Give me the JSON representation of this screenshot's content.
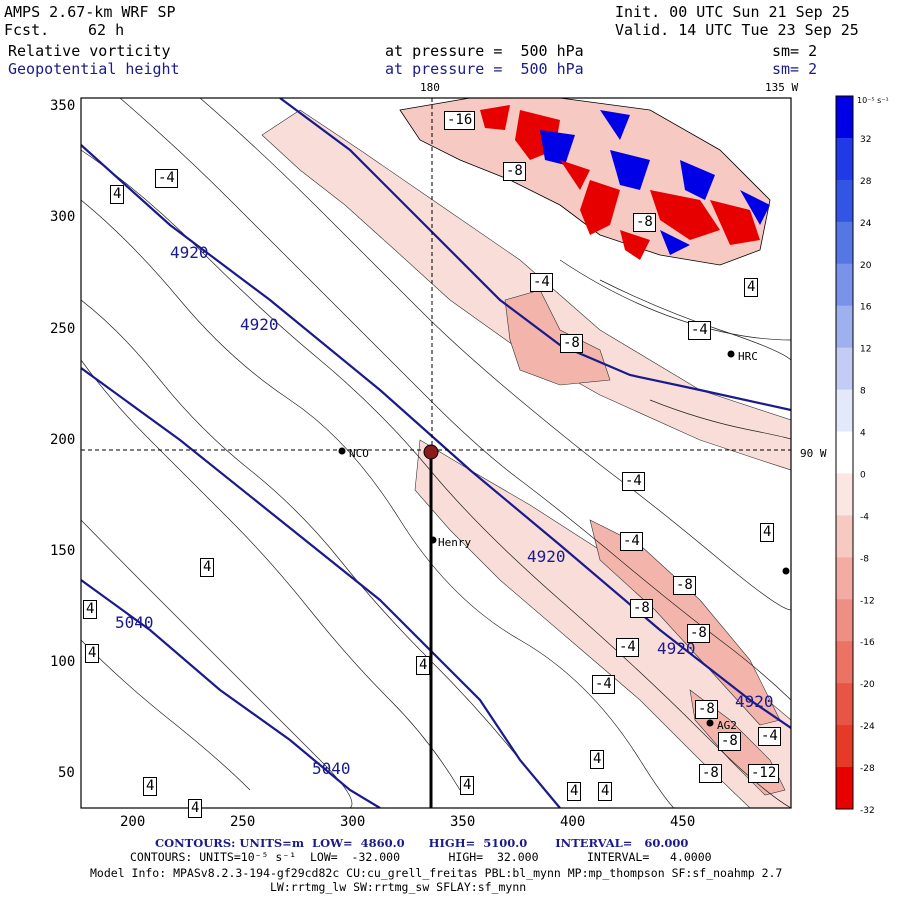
{
  "header": {
    "model": "AMPS 2.67-km WRF SP",
    "fcst_label": "Fcst.",
    "fcst_value": "62 h",
    "init": "Init. 00 UTC Sun 21 Sep 25",
    "valid": "Valid. 14 UTC Tue 23 Sep 25",
    "field1": "Relative vorticity",
    "field2": "Geopotential height",
    "pressure1": "at pressure =  500 hPa",
    "pressure2": "at pressure =  500 hPa",
    "sm1": "sm= 2",
    "sm2": "sm= 2"
  },
  "map": {
    "x_ticks": [
      "200",
      "250",
      "300",
      "350",
      "400",
      "450"
    ],
    "y_ticks": [
      "350",
      "300",
      "250",
      "200",
      "150",
      "100",
      "50"
    ],
    "lon_labels": {
      "top_180": "180",
      "top_135w": "135 W",
      "right_90w": "90 W"
    },
    "stations": [
      "NCO",
      "Henry",
      "HRC",
      "AG2"
    ],
    "height_contour_labels": [
      "4920",
      "4920",
      "4920",
      "4920",
      "4920",
      "5040",
      "5040"
    ],
    "vorticity_labels": [
      "-16",
      "-8",
      "-8",
      "-4",
      "-4",
      "-8",
      "-4",
      "-4",
      "-4",
      "-8",
      "-8",
      "-8",
      "-4",
      "-8",
      "-8",
      "-8",
      "-4",
      "-12",
      "-4",
      "4",
      "4",
      "4",
      "4",
      "4",
      "4",
      "4",
      "4",
      "4",
      "4",
      "4",
      "4",
      "4"
    ]
  },
  "colorbar": {
    "unit": "10⁻⁵ s⁻¹",
    "ticks": [
      "32",
      "28",
      "24",
      "20",
      "16",
      "12",
      "8",
      "4",
      "0",
      "-4",
      "-8",
      "-12",
      "-16",
      "-20",
      "-24",
      "-28",
      "-32"
    ],
    "colors": [
      "#0000e6",
      "#1f3ae6",
      "#3355e6",
      "#5577e6",
      "#7a93ea",
      "#9fb0ef",
      "#c3ccf5",
      "#e3e8fa",
      "#ffffff",
      "#fbe6e3",
      "#f7c9c3",
      "#f3aca3",
      "#ef8f84",
      "#ec7264",
      "#e85545",
      "#e63a28",
      "#e60000"
    ]
  },
  "footer": {
    "line1": "CONTOURS: UNITS=m  LOW=  4860.0      HIGH=  5100.0       INTERVAL=   60.000",
    "line2": "CONTOURS: UNITS=10⁻⁵ s⁻¹  LOW=  -32.000       HIGH=  32.000       INTERVAL=   4.0000",
    "line3": "Model Info: MPASv8.2.3-194-gf29cd82c CU:cu_grell_freitas PBL:bl_mynn MP:mp_thompson SF:sf_noahmp 2.7",
    "line4": "LW:rrtmg_lw SW:rrtmg_sw SFLAY:sf_mynn"
  }
}
